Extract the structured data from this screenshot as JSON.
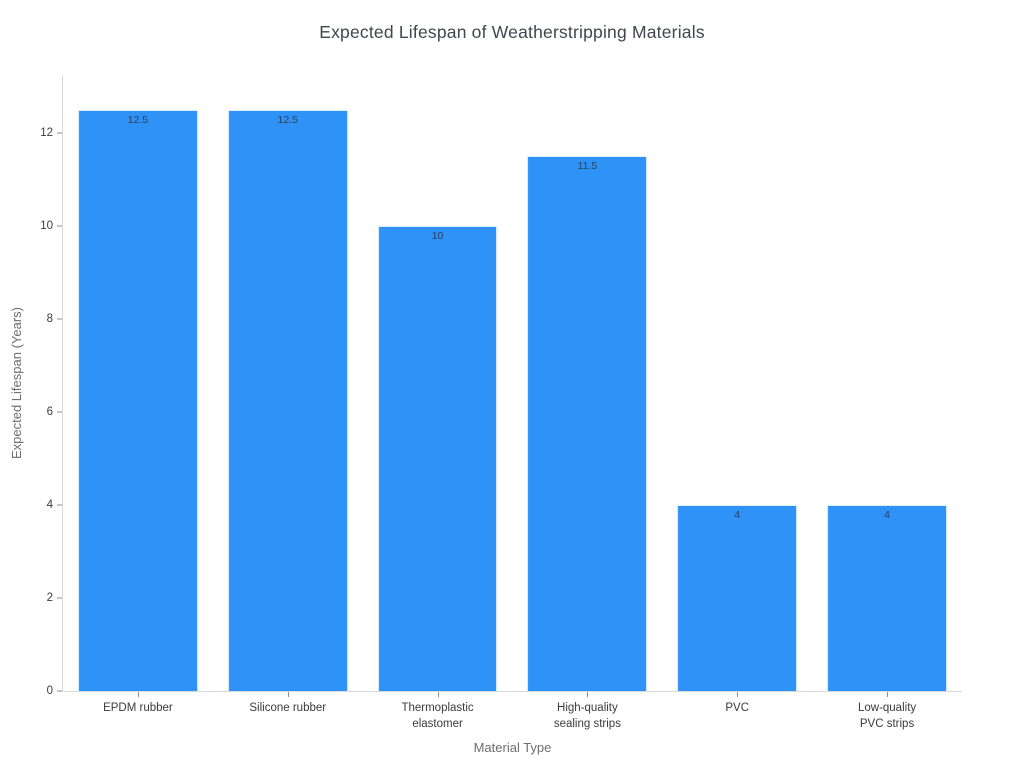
{
  "chart_data": {
    "type": "bar",
    "title": "Expected Lifespan of Weatherstripping Materials",
    "xlabel": "Material Type",
    "ylabel": "Expected Lifespan (Years)",
    "categories": [
      "EPDM rubber",
      "Silicone rubber",
      "Thermoplastic\nelastomer",
      "High-quality\nsealing strips",
      "PVC",
      "Low-quality\nPVC strips"
    ],
    "values": [
      12.5,
      12.5,
      10,
      11.5,
      4,
      4
    ],
    "bar_labels": [
      "12.5",
      "12.5",
      "10",
      "11.5",
      "4",
      "4"
    ],
    "yticks": [
      0,
      2,
      4,
      6,
      8,
      10,
      12
    ],
    "ylim": [
      0,
      13.25
    ],
    "grid": false,
    "legend": "none",
    "bar_color": "#2e92f6"
  },
  "colors": {
    "background": "#ffffff",
    "bar": "#2e92f6",
    "axis_line": "#d9d9d9",
    "tick_mark": "#8a8a8a",
    "tick_label_text": "#3b3b3b",
    "axis_title_text": "#6e6e6e",
    "title_text": "#42464d",
    "bar_value_text": "#2a3f5f"
  }
}
